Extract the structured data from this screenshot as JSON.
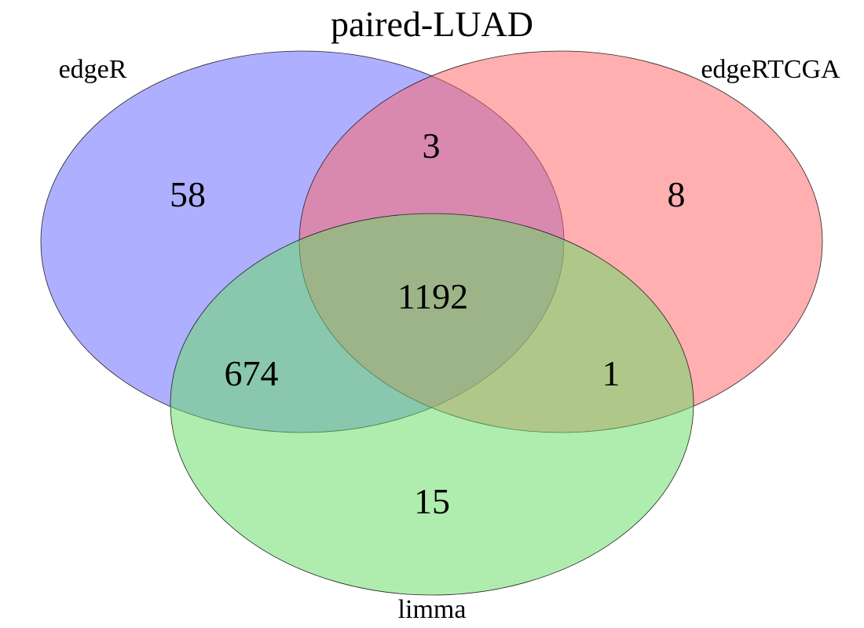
{
  "title": "paired-LUAD",
  "sets": {
    "a": {
      "label": "edgeR",
      "color": "#6666ff"
    },
    "b": {
      "label": "edgeRTCGA",
      "color": "#ff6666"
    },
    "c": {
      "label": "limma",
      "color": "#66dd66"
    }
  },
  "counts": {
    "only_a": "58",
    "only_b": "8",
    "ab": "3",
    "abc": "1192",
    "ac": "674",
    "bc": "1",
    "only_c": "15"
  }
}
